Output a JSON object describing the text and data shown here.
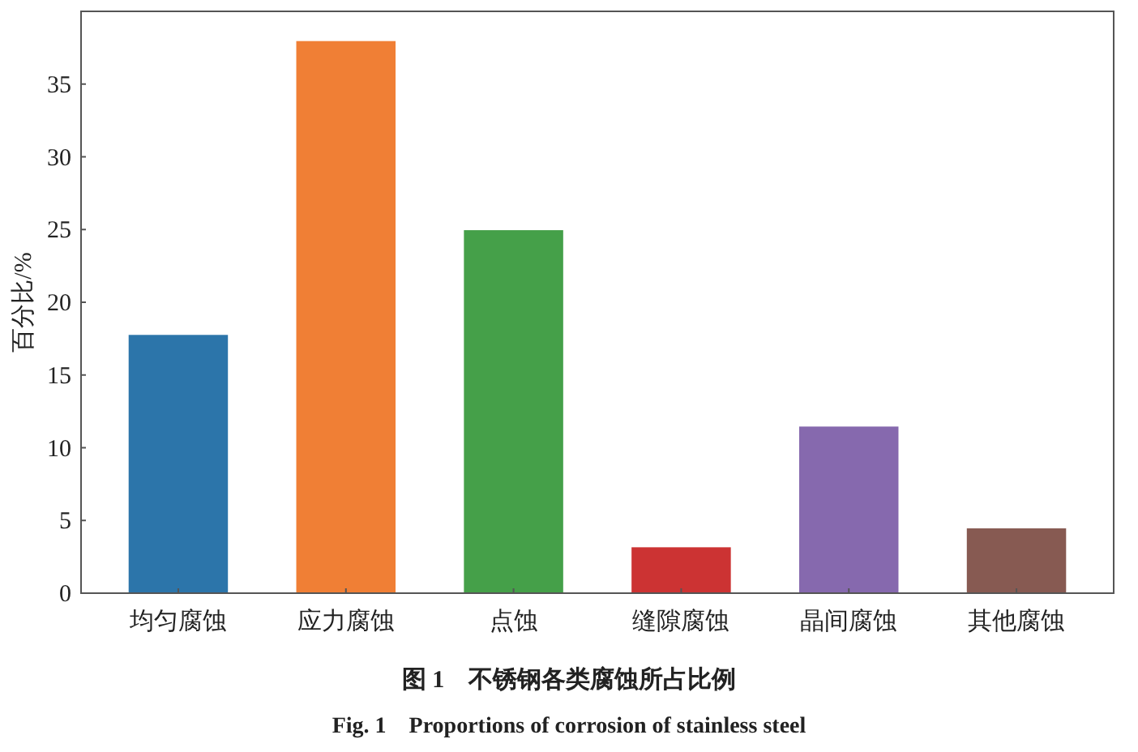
{
  "chart_data": {
    "type": "bar",
    "title": "图 1　不锈钢各类腐蚀所占比例",
    "subtitle": "Fig. 1　Proportions of corrosion of stainless steel",
    "ylabel": "百分比/%",
    "categories": [
      "均匀腐蚀",
      "应力腐蚀",
      "点蚀",
      "缝隙腐蚀",
      "晶间腐蚀",
      "其他腐蚀"
    ],
    "values": [
      17.8,
      38.0,
      25.0,
      3.2,
      11.5,
      4.5
    ],
    "colors": [
      "#2c75aa",
      "#f07f35",
      "#45a049",
      "#cc3333",
      "#8669ae",
      "#875a52"
    ],
    "ylim": [
      0,
      40
    ],
    "yticks": [
      0,
      5,
      10,
      15,
      20,
      25,
      30,
      35
    ]
  }
}
